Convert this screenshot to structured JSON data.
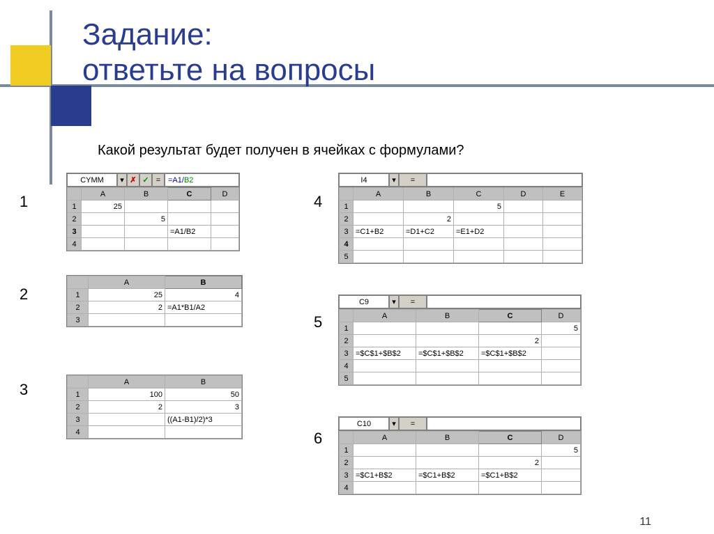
{
  "title_line1": "Задание:",
  "title_line2": "ответьте на вопросы",
  "subtitle": "Какой результат будет получен в ячейках с формулами?",
  "page_number": "11",
  "labels": {
    "n1": "1",
    "n2": "2",
    "n3": "3",
    "n4": "4",
    "n5": "5",
    "n6": "6"
  },
  "formula_bars": {
    "t1": {
      "name": "CYMM",
      "x": "✗",
      "check": "✓",
      "eq": "=",
      "f_a": "=A1/",
      "f_b": "B2"
    },
    "t4": {
      "name": "I4",
      "eq": "="
    },
    "t5": {
      "name": "C9",
      "eq": "="
    },
    "t6": {
      "name": "C10",
      "eq": "="
    }
  },
  "tables": {
    "t1": {
      "cols": [
        "A",
        "B",
        "C",
        "D"
      ],
      "rows": [
        "1",
        "2",
        "3",
        "4"
      ],
      "bold_col": "C",
      "bold_row": "3",
      "cells": {
        "A1": "25",
        "B2": "5",
        "C3": "=A1/B2"
      }
    },
    "t2": {
      "cols": [
        "A",
        "B"
      ],
      "rows": [
        "1",
        "2",
        "3"
      ],
      "bold_col": "B",
      "cells": {
        "A1": "25",
        "B1": "4",
        "A2": "2",
        "B2": "=A1*B1/A2"
      }
    },
    "t3": {
      "cols": [
        "A",
        "B"
      ],
      "rows": [
        "1",
        "2",
        "3",
        "4"
      ],
      "cells": {
        "A1": "100",
        "B1": "50",
        "A2": "2",
        "B2": "3",
        "B3": "((A1-B1)/2)*3"
      }
    },
    "t4": {
      "cols": [
        "A",
        "B",
        "C",
        "D",
        "E"
      ],
      "rows": [
        "1",
        "2",
        "3",
        "4",
        "5"
      ],
      "bold_row": "4",
      "cells": {
        "C1": "5",
        "B2": "2",
        "A3": "=C1+B2",
        "B3": "=D1+C2",
        "C3": "=E1+D2"
      }
    },
    "t5": {
      "cols": [
        "A",
        "B",
        "C",
        "D"
      ],
      "rows": [
        "1",
        "2",
        "3",
        "4",
        "5"
      ],
      "bold_col": "C",
      "cells": {
        "D1": "5",
        "C2": "2",
        "A3": "=$C$1+$B$2",
        "B3": "=$C$1+$B$2",
        "C3": "=$C$1+$B$2"
      }
    },
    "t6": {
      "cols": [
        "A",
        "B",
        "C",
        "D"
      ],
      "rows": [
        "1",
        "2",
        "3",
        "4"
      ],
      "bold_col": "C",
      "cells": {
        "D1": "5",
        "C2": "2",
        "A3": "=$C1+B$2",
        "B3": "=$C1+B$2",
        "C3": "=$C1+B$2"
      }
    }
  },
  "layout": {
    "col_widths": {
      "t1": [
        20,
        62,
        62,
        62,
        40
      ],
      "t2": [
        30,
        110,
        110
      ],
      "t3": [
        30,
        110,
        110
      ],
      "t4": [
        20,
        72,
        72,
        72,
        56,
        56
      ],
      "t5": [
        20,
        90,
        90,
        90,
        56
      ],
      "t6": [
        20,
        90,
        90,
        90,
        56
      ]
    }
  }
}
